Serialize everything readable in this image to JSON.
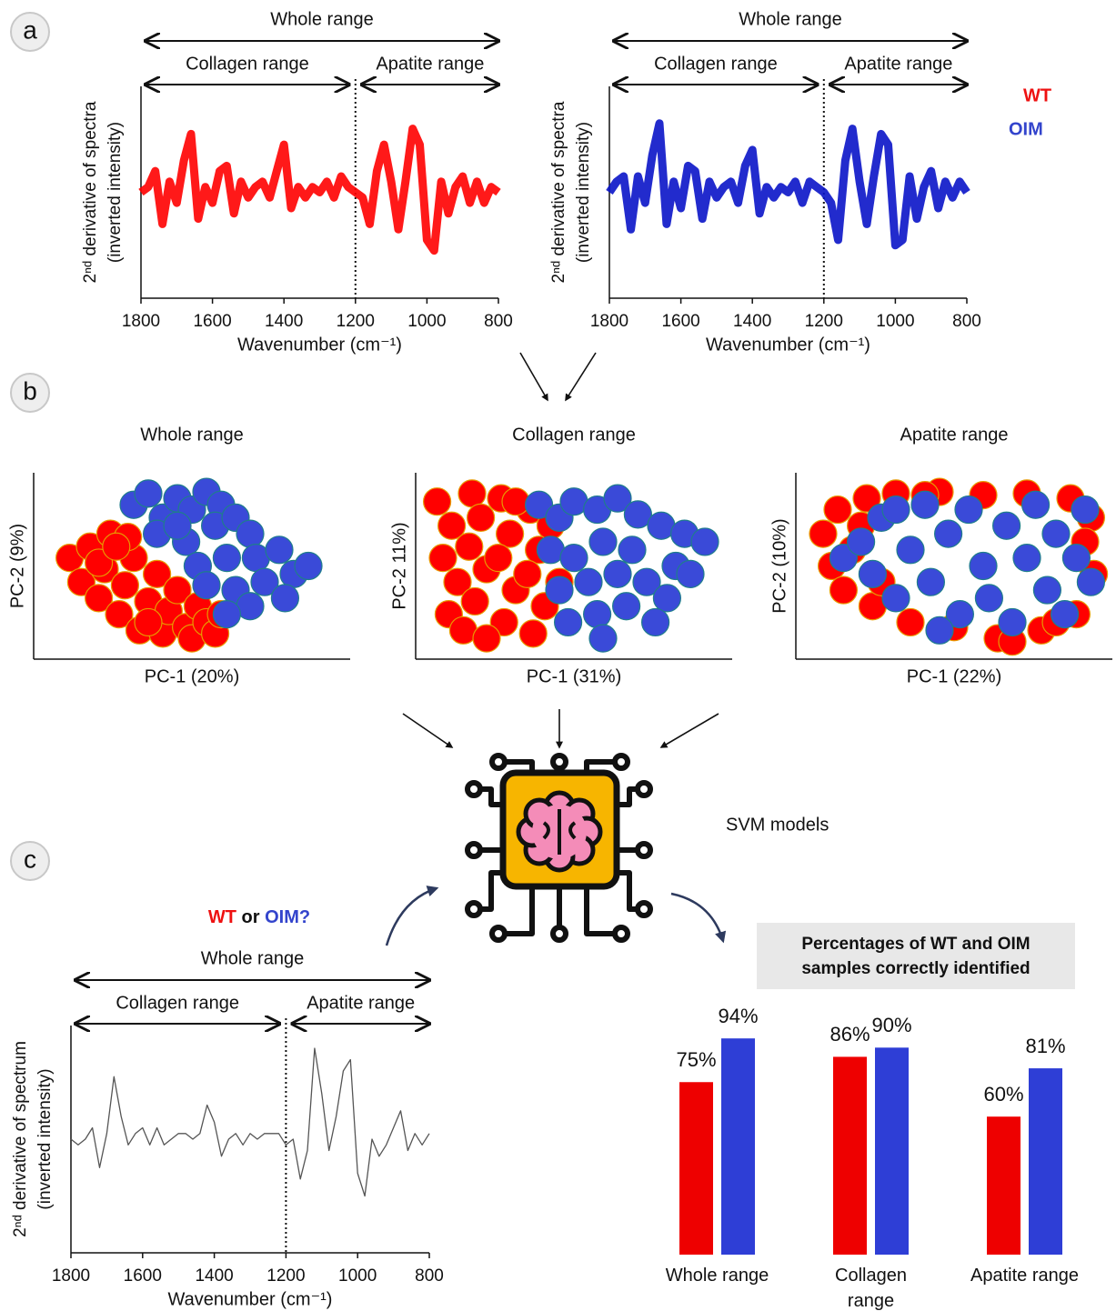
{
  "panel_labels": [
    "a",
    "b",
    "c"
  ],
  "query": [
    "WT",
    "or",
    "OIM?"
  ],
  "model_label": "SVM models",
  "chart_data": [
    {
      "type": "line",
      "xlabel": "Wavenumber (cm⁻¹)",
      "ylabel": [
        "2ⁿᵈ derivative of spectra",
        "(inverted intensity)"
      ],
      "xlim": [
        1800,
        800
      ],
      "ylim": [
        -1,
        1
      ],
      "xticks": [
        1800,
        1600,
        1400,
        1200,
        1000,
        800
      ],
      "divider": 1200,
      "ranges": [
        {
          "label": "Whole range",
          "from": 1800,
          "to": 800
        },
        {
          "label": "Collagen range",
          "from": 1800,
          "to": 1200
        },
        {
          "label": "Apatite range",
          "from": 1200,
          "to": 800
        }
      ],
      "x": [
        1800,
        1780,
        1760,
        1740,
        1720,
        1700,
        1680,
        1660,
        1640,
        1620,
        1600,
        1580,
        1560,
        1540,
        1520,
        1500,
        1480,
        1460,
        1440,
        1420,
        1400,
        1380,
        1360,
        1340,
        1320,
        1300,
        1280,
        1260,
        1240,
        1220,
        1200,
        1180,
        1160,
        1140,
        1120,
        1100,
        1080,
        1060,
        1040,
        1020,
        1000,
        980,
        960,
        940,
        920,
        900,
        880,
        860,
        840,
        820,
        800
      ],
      "series": [
        {
          "name": "WT",
          "color": "#ff0000",
          "values": [
            0,
            0.05,
            0.2,
            -0.3,
            0.1,
            -0.1,
            0.3,
            0.55,
            -0.25,
            0.05,
            -0.1,
            0.2,
            0.25,
            -0.2,
            0.1,
            -0.05,
            0.05,
            0.1,
            -0.05,
            0.2,
            0.45,
            -0.15,
            0.05,
            -0.05,
            0.05,
            0,
            0.1,
            -0.05,
            0.15,
            0.05,
            0,
            -0.05,
            -0.3,
            0.2,
            0.45,
            0.1,
            -0.35,
            0.1,
            0.6,
            0.45,
            -0.45,
            -0.55,
            0.1,
            -0.2,
            0.05,
            0.15,
            -0.1,
            0.1,
            -0.1,
            0.05,
            0
          ]
        }
      ]
    },
    {
      "type": "line",
      "xlabel": "Wavenumber (cm⁻¹)",
      "ylabel": [
        "2ⁿᵈ derivative of spectra",
        "(inverted intensity)"
      ],
      "xlim": [
        1800,
        800
      ],
      "ylim": [
        -1,
        1
      ],
      "xticks": [
        1800,
        1600,
        1400,
        1200,
        1000,
        800
      ],
      "divider": 1200,
      "ranges": [
        {
          "label": "Whole range",
          "from": 1800,
          "to": 800
        },
        {
          "label": "Collagen range",
          "from": 1800,
          "to": 1200
        },
        {
          "label": "Apatite range",
          "from": 1200,
          "to": 800
        }
      ],
      "x": [
        1800,
        1780,
        1760,
        1740,
        1720,
        1700,
        1680,
        1660,
        1640,
        1620,
        1600,
        1580,
        1560,
        1540,
        1520,
        1500,
        1480,
        1460,
        1440,
        1420,
        1400,
        1380,
        1360,
        1340,
        1320,
        1300,
        1280,
        1260,
        1240,
        1220,
        1200,
        1180,
        1160,
        1140,
        1120,
        1100,
        1080,
        1060,
        1040,
        1020,
        1000,
        980,
        960,
        940,
        920,
        900,
        880,
        860,
        840,
        820,
        800
      ],
      "series": [
        {
          "name": "OIM",
          "color": "#0a14c8",
          "values": [
            0,
            0.1,
            0.15,
            -0.35,
            0.15,
            -0.1,
            0.35,
            0.65,
            -0.3,
            0.1,
            -0.15,
            0.25,
            0.2,
            -0.25,
            0.1,
            -0.05,
            0.05,
            0.1,
            -0.1,
            0.25,
            0.4,
            -0.2,
            0.05,
            -0.05,
            0.05,
            0,
            0.1,
            -0.1,
            0.1,
            0.05,
            0,
            -0.1,
            -0.45,
            0.3,
            0.6,
            0.1,
            -0.3,
            0.15,
            0.55,
            0.45,
            -0.5,
            -0.45,
            0.15,
            -0.25,
            0.05,
            0.2,
            -0.15,
            0.1,
            -0.05,
            0.1,
            0
          ]
        }
      ]
    },
    {
      "type": "line",
      "xlabel": "Wavenumber (cm⁻¹)",
      "ylabel": [
        "2ⁿᵈ derivative of spectrum",
        "(inverted intensity)"
      ],
      "xlim": [
        1800,
        800
      ],
      "ylim": [
        -1,
        1
      ],
      "xticks": [
        1800,
        1600,
        1400,
        1200,
        1000,
        800
      ],
      "divider": 1200,
      "ranges": [
        {
          "label": "Whole range",
          "from": 1800,
          "to": 800
        },
        {
          "label": "Collagen range",
          "from": 1800,
          "to": 1200
        },
        {
          "label": "Apatite range",
          "from": 1200,
          "to": 800
        }
      ],
      "x": [
        1800,
        1780,
        1760,
        1740,
        1720,
        1700,
        1680,
        1660,
        1640,
        1620,
        1600,
        1580,
        1560,
        1540,
        1520,
        1500,
        1480,
        1460,
        1440,
        1420,
        1400,
        1380,
        1360,
        1340,
        1320,
        1300,
        1280,
        1260,
        1240,
        1220,
        1200,
        1180,
        1160,
        1140,
        1120,
        1100,
        1080,
        1060,
        1040,
        1020,
        1000,
        980,
        960,
        940,
        920,
        900,
        880,
        860,
        840,
        820,
        800
      ],
      "series": [
        {
          "color": "#555555",
          "values": [
            0,
            -0.05,
            0,
            0.1,
            -0.25,
            0.05,
            0.55,
            0.2,
            -0.05,
            0.05,
            0.1,
            -0.05,
            0.1,
            -0.05,
            0,
            0.05,
            0.05,
            0,
            0.05,
            0.3,
            0.15,
            -0.15,
            0,
            0.05,
            -0.05,
            0.05,
            0,
            0.05,
            0.05,
            0.05,
            -0.05,
            0,
            -0.35,
            -0.1,
            0.8,
            0.4,
            -0.1,
            0.2,
            0.6,
            0.7,
            -0.3,
            -0.5,
            0,
            -0.15,
            -0.05,
            0.1,
            0.25,
            -0.1,
            0.05,
            -0.05,
            0.05
          ]
        }
      ]
    },
    {
      "type": "scatter",
      "title": "Whole range",
      "xlabel": "PC-1 (20%)",
      "ylabel": "PC-2 (9%)",
      "xlim": [
        0,
        100
      ],
      "ylim": [
        0,
        100
      ],
      "series": [
        {
          "color": "#ff0000",
          "x": [
            8,
            12,
            15,
            18,
            20,
            22,
            25,
            27,
            30,
            32,
            35,
            38,
            40,
            42,
            45,
            48,
            50,
            52,
            55,
            58,
            28,
            18,
            60,
            35,
            24
          ],
          "values": [
            55,
            40,
            62,
            30,
            48,
            70,
            20,
            38,
            55,
            10,
            28,
            45,
            8,
            22,
            35,
            12,
            5,
            25,
            15,
            8,
            68,
            52,
            20,
            15,
            62
          ]
        },
        {
          "color": "#3a4ad8",
          "x": [
            30,
            35,
            40,
            45,
            50,
            55,
            60,
            38,
            48,
            58,
            65,
            70,
            52,
            62,
            72,
            80,
            85,
            75,
            65,
            55,
            90,
            82,
            70,
            62,
            45
          ],
          "values": [
            88,
            95,
            80,
            92,
            85,
            96,
            88,
            70,
            65,
            75,
            80,
            70,
            50,
            55,
            55,
            60,
            45,
            40,
            35,
            38,
            50,
            30,
            25,
            20,
            75
          ]
        }
      ]
    },
    {
      "type": "scatter",
      "title": "Collagen range",
      "xlabel": "PC-1 (31%)",
      "ylabel": "PC-2 11%)",
      "xlim": [
        0,
        100
      ],
      "ylim": [
        0,
        100
      ],
      "series": [
        {
          "color": "#ff0000",
          "x": [
            3,
            8,
            5,
            10,
            7,
            15,
            18,
            14,
            20,
            16,
            12,
            25,
            28,
            24,
            30,
            26,
            35,
            38,
            34,
            40,
            36,
            42,
            20,
            45,
            30
          ],
          "values": [
            90,
            75,
            55,
            40,
            20,
            95,
            80,
            62,
            48,
            28,
            10,
            92,
            70,
            55,
            35,
            15,
            85,
            60,
            45,
            25,
            8,
            75,
            5,
            40,
            90
          ]
        },
        {
          "color": "#3a4ad8",
          "x": [
            38,
            45,
            50,
            58,
            65,
            72,
            80,
            88,
            95,
            42,
            50,
            60,
            70,
            85,
            45,
            55,
            65,
            75,
            82,
            48,
            58,
            68,
            78,
            60,
            90
          ],
          "values": [
            88,
            80,
            90,
            85,
            92,
            82,
            75,
            70,
            65,
            60,
            55,
            65,
            60,
            50,
            35,
            40,
            45,
            40,
            30,
            15,
            20,
            25,
            15,
            5,
            45
          ]
        }
      ]
    },
    {
      "type": "scatter",
      "title": "Apatite range",
      "xlabel": "PC-1 (22%)",
      "ylabel": "PC-2 (10%)",
      "xlim": [
        0,
        100
      ],
      "ylim": [
        0,
        100
      ],
      "series": [
        {
          "color": "#ff0000",
          "x": [
            5,
            8,
            10,
            12,
            15,
            20,
            30,
            45,
            60,
            75,
            90,
            97,
            98,
            92,
            80,
            65,
            50,
            35,
            22,
            18,
            70,
            85,
            95,
            40,
            25
          ],
          "values": [
            70,
            50,
            85,
            35,
            60,
            92,
            95,
            96,
            94,
            95,
            92,
            80,
            45,
            20,
            10,
            5,
            12,
            15,
            25,
            75,
            3,
            15,
            65,
            94,
            40
          ]
        },
        {
          "color": "#3a4ad8",
          "x": [
            12,
            18,
            22,
            25,
            30,
            35,
            40,
            42,
            48,
            52,
            55,
            60,
            62,
            68,
            70,
            75,
            78,
            82,
            85,
            88,
            92,
            95,
            97,
            30,
            45
          ],
          "values": [
            55,
            65,
            45,
            80,
            30,
            60,
            88,
            40,
            70,
            20,
            85,
            50,
            30,
            75,
            15,
            55,
            88,
            35,
            70,
            20,
            55,
            85,
            40,
            85,
            10
          ]
        }
      ]
    },
    {
      "type": "bar",
      "title": "Percentages of WT and OIM samples correctly identified",
      "categories": [
        "Whole range",
        "Collagen range",
        "Apatite range"
      ],
      "ylim": [
        0,
        100
      ],
      "series": [
        {
          "color": "#ee0000",
          "values": [
            75,
            86,
            60
          ],
          "value_labels": [
            "75%",
            "86%",
            "60%"
          ]
        },
        {
          "color": "#2e3ed6",
          "values": [
            94,
            90,
            81
          ],
          "value_labels": [
            "94%",
            "90%",
            "81%"
          ]
        }
      ]
    }
  ]
}
